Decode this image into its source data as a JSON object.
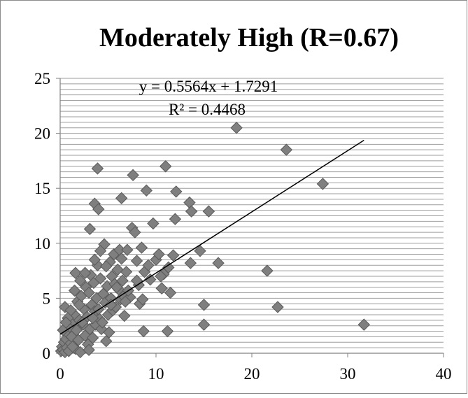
{
  "chart_data": {
    "type": "scatter",
    "title": "Moderately High (R=0.67)",
    "xlabel": "",
    "ylabel": "",
    "xlim": [
      0,
      40
    ],
    "ylim": [
      0,
      25
    ],
    "x_ticks": [
      0,
      10,
      20,
      30,
      40
    ],
    "y_ticks": [
      0,
      5,
      10,
      15,
      20,
      25
    ],
    "y_minor_step": 0.5,
    "grid": "horizontal",
    "legend": "none",
    "marker": "diamond",
    "marker_color": "#7f7f7f",
    "trendline": {
      "type": "linear",
      "slope": 0.5564,
      "intercept": 1.7291,
      "x_range": [
        0,
        31.7
      ],
      "equation_label": "y = 0.5564x + 1.7291",
      "r_squared_label": "R² = 0.4468"
    },
    "series": [
      {
        "points": [
          [
            0.1,
            0.2
          ],
          [
            0.2,
            0.6
          ],
          [
            0.3,
            0.3
          ],
          [
            0.4,
            1.0
          ],
          [
            0.5,
            0.1
          ],
          [
            0.6,
            1.3
          ],
          [
            0.7,
            0.5
          ],
          [
            0.8,
            1.8
          ],
          [
            0.9,
            0.2
          ],
          [
            1.0,
            2.4
          ],
          [
            1.1,
            0.9
          ],
          [
            1.2,
            1.5
          ],
          [
            0.5,
            4.2
          ],
          [
            1.4,
            2.9
          ],
          [
            1.5,
            3.5
          ],
          [
            1.6,
            0.4
          ],
          [
            1.7,
            2.1
          ],
          [
            1.8,
            4.7
          ],
          [
            1.9,
            1.2
          ],
          [
            2.0,
            3.0
          ],
          [
            2.1,
            0.1
          ],
          [
            2.2,
            5.2
          ],
          [
            1.6,
            7.3
          ],
          [
            2.4,
            2.6
          ],
          [
            2.5,
            4.0
          ],
          [
            2.6,
            1.6
          ],
          [
            2.7,
            6.0
          ],
          [
            2.8,
            3.3
          ],
          [
            2.9,
            0.8
          ],
          [
            3.0,
            5.5
          ],
          [
            3.1,
            2.2
          ],
          [
            3.2,
            7.1
          ],
          [
            3.3,
            4.4
          ],
          [
            3.4,
            1.4
          ],
          [
            3.5,
            6.4
          ],
          [
            3.6,
            3.8
          ],
          [
            3.7,
            2.6
          ],
          [
            3.8,
            5.0
          ],
          [
            3.9,
            8.0
          ],
          [
            4.0,
            4.0
          ],
          [
            4.1,
            3.1
          ],
          [
            4.2,
            6.8
          ],
          [
            4.3,
            2.2
          ],
          [
            4.5,
            5.4
          ],
          [
            4.6,
            9.9
          ],
          [
            4.7,
            4.6
          ],
          [
            4.8,
            1.1
          ],
          [
            4.9,
            6.1
          ],
          [
            5.0,
            3.5
          ],
          [
            5.2,
            8.3
          ],
          [
            5.3,
            5.0
          ],
          [
            5.4,
            7.0
          ],
          [
            5.5,
            3.9
          ],
          [
            5.6,
            9.0
          ],
          [
            5.7,
            6.3
          ],
          [
            5.8,
            4.2
          ],
          [
            6.0,
            7.6
          ],
          [
            6.1,
            5.8
          ],
          [
            6.2,
            9.4
          ],
          [
            6.3,
            4.9
          ],
          [
            6.4,
            8.6
          ],
          [
            6.5,
            6.6
          ],
          [
            6.6,
            5.2
          ],
          [
            6.7,
            3.4
          ],
          [
            6.9,
            7.4
          ],
          [
            7.0,
            9.4
          ],
          [
            7.3,
            5.1
          ],
          [
            7.5,
            11.4
          ],
          [
            7.6,
            16.2
          ],
          [
            7.8,
            11.0
          ],
          [
            8.0,
            8.4
          ],
          [
            8.2,
            6.2
          ],
          [
            8.3,
            4.5
          ],
          [
            8.5,
            9.6
          ],
          [
            8.6,
            4.9
          ],
          [
            8.7,
            2.0
          ],
          [
            8.8,
            7.4
          ],
          [
            9.0,
            14.8
          ],
          [
            9.2,
            8.0
          ],
          [
            9.4,
            6.7
          ],
          [
            9.7,
            11.8
          ],
          [
            10.0,
            8.5
          ],
          [
            10.3,
            9.0
          ],
          [
            10.6,
            5.9
          ],
          [
            10.8,
            7.2
          ],
          [
            11.0,
            17.0
          ],
          [
            11.2,
            2.0
          ],
          [
            11.3,
            7.8
          ],
          [
            11.5,
            5.5
          ],
          [
            11.8,
            8.9
          ],
          [
            12.0,
            12.2
          ],
          [
            12.1,
            14.7
          ],
          [
            13.5,
            13.7
          ],
          [
            13.7,
            12.9
          ],
          [
            13.6,
            8.2
          ],
          [
            14.6,
            9.3
          ],
          [
            15.0,
            4.4
          ],
          [
            15.0,
            2.6
          ],
          [
            15.5,
            12.9
          ],
          [
            16.5,
            8.2
          ],
          [
            18.4,
            20.5
          ],
          [
            21.6,
            7.5
          ],
          [
            22.7,
            4.2
          ],
          [
            23.6,
            18.5
          ],
          [
            27.4,
            15.4
          ],
          [
            31.7,
            2.6
          ],
          [
            3.9,
            16.8
          ],
          [
            3.6,
            13.6
          ],
          [
            4.0,
            13.1
          ],
          [
            3.1,
            11.3
          ],
          [
            6.4,
            14.1
          ],
          [
            2.1,
            6.6
          ],
          [
            1.1,
            3.9
          ],
          [
            2.3,
            2.8
          ],
          [
            3.4,
            3.2
          ],
          [
            4.4,
            2.8
          ],
          [
            5.1,
            1.9
          ],
          [
            1.3,
            0.6
          ],
          [
            0.8,
            3.2
          ],
          [
            2.6,
            7.3
          ],
          [
            3.0,
            0.3
          ],
          [
            5.9,
            6.0
          ],
          [
            7.1,
            5.7
          ],
          [
            4.2,
            9.3
          ],
          [
            5.3,
            4.4
          ],
          [
            2.0,
            4.4
          ],
          [
            1.5,
            5.7
          ],
          [
            3.6,
            8.5
          ],
          [
            6.8,
            4.7
          ],
          [
            4.8,
            7.9
          ],
          [
            8.0,
            6.6
          ],
          [
            10.5,
            7.0
          ],
          [
            0.3,
            2.1
          ],
          [
            0.6,
            2.8
          ]
        ]
      }
    ]
  }
}
